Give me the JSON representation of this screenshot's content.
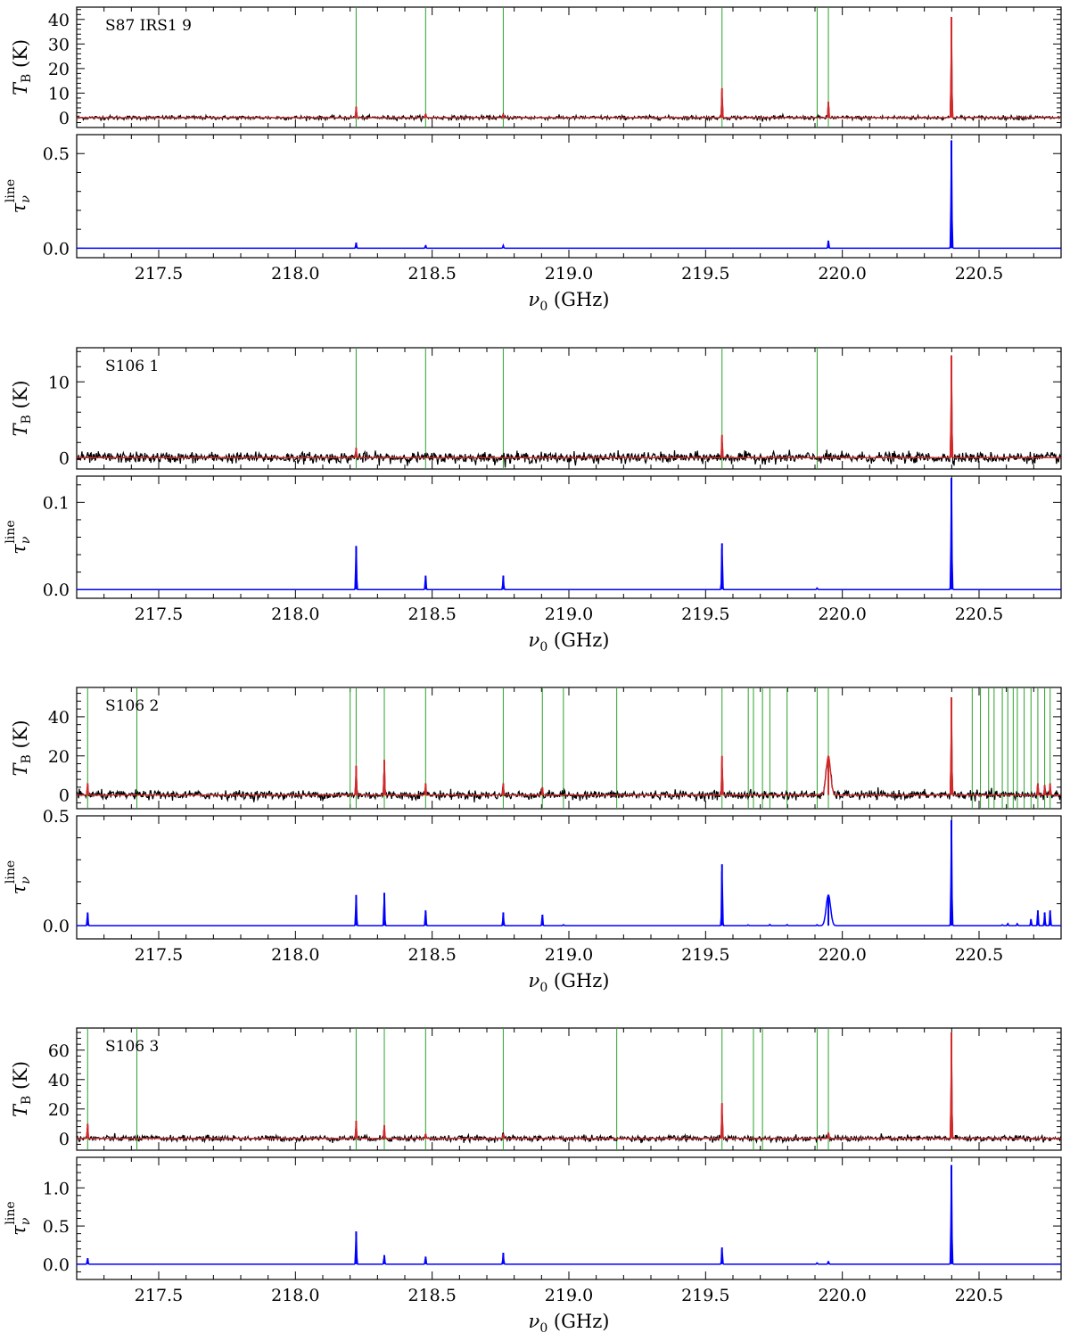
{
  "figure": {
    "xlabel": "ν₀ (GHz)",
    "xlim": [
      217.2,
      220.8
    ],
    "xticks": [
      217.5,
      218.0,
      218.5,
      219.0,
      219.5,
      220.0,
      220.5
    ],
    "xtick_labels": [
      "217.5",
      "218.0",
      "218.5",
      "219.0",
      "219.5",
      "220.0",
      "220.5"
    ],
    "colors": {
      "observed": "#000000",
      "model": "#d62728",
      "tau": "#0000ff",
      "line_markers": "#2ca02c"
    }
  },
  "chart_data": [
    {
      "type": "line",
      "source_label": "S87 IRS1 9",
      "top": {
        "ylabel": "T_B (K)",
        "ylim": [
          -4,
          45
        ],
        "yticks": [
          0,
          10,
          20,
          30,
          40
        ],
        "ytick_labels": [
          "0",
          "10",
          "20",
          "30",
          "40"
        ],
        "line_markers": [
          218.222,
          218.476,
          218.76,
          219.56,
          219.908,
          219.949
        ],
        "peaks": [
          {
            "x": 218.222,
            "y": 4.5
          },
          {
            "x": 218.476,
            "y": 1.5
          },
          {
            "x": 218.76,
            "y": 1.5
          },
          {
            "x": 219.56,
            "y": 12.0
          },
          {
            "x": 219.949,
            "y": 6.5
          },
          {
            "x": 220.399,
            "y": 41.0
          }
        ],
        "noise_rms": 0.4
      },
      "bottom": {
        "ylabel": "τ_ν^line",
        "ylim": [
          -0.05,
          0.6
        ],
        "yticks": [
          0.0,
          0.5
        ],
        "ytick_labels": [
          "0.0",
          "0.5"
        ],
        "peaks": [
          {
            "x": 218.222,
            "y": 0.03
          },
          {
            "x": 218.476,
            "y": 0.015
          },
          {
            "x": 218.76,
            "y": 0.015
          },
          {
            "x": 219.949,
            "y": 0.04
          },
          {
            "x": 220.399,
            "y": 0.57
          }
        ]
      }
    },
    {
      "type": "line",
      "source_label": "S106 1",
      "top": {
        "ylabel": "T_B (K)",
        "ylim": [
          -1.5,
          14.5
        ],
        "yticks": [
          0,
          10
        ],
        "ytick_labels": [
          "0",
          "10"
        ],
        "line_markers": [
          218.222,
          218.476,
          218.76,
          219.56,
          219.908
        ],
        "peaks": [
          {
            "x": 218.222,
            "y": 1.3
          },
          {
            "x": 219.56,
            "y": 3.0
          },
          {
            "x": 220.399,
            "y": 13.5
          }
        ],
        "noise_rms": 0.35
      },
      "bottom": {
        "ylabel": "τ_ν^line",
        "ylim": [
          -0.01,
          0.13
        ],
        "yticks": [
          0.0,
          0.1
        ],
        "ytick_labels": [
          "0.0",
          "0.1"
        ],
        "peaks": [
          {
            "x": 218.222,
            "y": 0.05
          },
          {
            "x": 218.476,
            "y": 0.016
          },
          {
            "x": 218.76,
            "y": 0.016
          },
          {
            "x": 219.56,
            "y": 0.053
          },
          {
            "x": 219.908,
            "y": 0.002
          },
          {
            "x": 220.399,
            "y": 0.128
          }
        ]
      }
    },
    {
      "type": "line",
      "source_label": "S106 2",
      "top": {
        "ylabel": "T_B (K)",
        "ylim": [
          -7,
          55
        ],
        "yticks": [
          0,
          20,
          40
        ],
        "ytick_labels": [
          "0",
          "20",
          "40"
        ],
        "line_markers": [
          217.24,
          217.42,
          218.2,
          218.222,
          218.325,
          218.476,
          218.76,
          218.903,
          218.98,
          219.175,
          219.56,
          219.656,
          219.675,
          219.708,
          219.735,
          219.798,
          219.908,
          219.949,
          220.475,
          220.505,
          220.535,
          220.555,
          220.585,
          220.605,
          220.625,
          220.64,
          220.665,
          220.69,
          220.715,
          220.74,
          220.76
        ],
        "peaks": [
          {
            "x": 217.24,
            "y": 6.0
          },
          {
            "x": 218.222,
            "y": 15.0
          },
          {
            "x": 218.325,
            "y": 18.0
          },
          {
            "x": 218.476,
            "y": 6.0
          },
          {
            "x": 218.76,
            "y": 6.0
          },
          {
            "x": 218.903,
            "y": 4.0
          },
          {
            "x": 219.56,
            "y": 20.0
          },
          {
            "x": 219.949,
            "y": 20.0,
            "w": 0.008
          },
          {
            "x": 220.399,
            "y": 50.0
          },
          {
            "x": 220.715,
            "y": 6.0
          },
          {
            "x": 220.74,
            "y": 5.0
          },
          {
            "x": 220.76,
            "y": 6.0
          }
        ],
        "noise_rms": 1.1
      },
      "bottom": {
        "ylabel": "τ_ν^line",
        "ylim": [
          -0.06,
          0.5
        ],
        "yticks": [
          0.0,
          0.5
        ],
        "ytick_labels": [
          "0.0",
          "0.5"
        ],
        "peaks": [
          {
            "x": 217.24,
            "y": 0.06
          },
          {
            "x": 218.222,
            "y": 0.14
          },
          {
            "x": 218.325,
            "y": 0.15
          },
          {
            "x": 218.476,
            "y": 0.07
          },
          {
            "x": 218.76,
            "y": 0.06
          },
          {
            "x": 218.903,
            "y": 0.05
          },
          {
            "x": 218.98,
            "y": 0.005
          },
          {
            "x": 219.56,
            "y": 0.28
          },
          {
            "x": 219.656,
            "y": 0.004
          },
          {
            "x": 219.735,
            "y": 0.006
          },
          {
            "x": 219.798,
            "y": 0.006
          },
          {
            "x": 219.908,
            "y": 0.005
          },
          {
            "x": 219.949,
            "y": 0.14,
            "w": 0.008
          },
          {
            "x": 220.399,
            "y": 0.48
          },
          {
            "x": 220.585,
            "y": 0.005
          },
          {
            "x": 220.605,
            "y": 0.01
          },
          {
            "x": 220.64,
            "y": 0.01
          },
          {
            "x": 220.69,
            "y": 0.03
          },
          {
            "x": 220.715,
            "y": 0.07
          },
          {
            "x": 220.74,
            "y": 0.06
          },
          {
            "x": 220.76,
            "y": 0.07
          }
        ]
      }
    },
    {
      "type": "line",
      "source_label": "S106 3",
      "top": {
        "ylabel": "T_B (K)",
        "ylim": [
          -8,
          75
        ],
        "yticks": [
          0,
          20,
          40,
          60
        ],
        "ytick_labels": [
          "0",
          "20",
          "40",
          "60"
        ],
        "line_markers": [
          217.24,
          217.42,
          218.222,
          218.325,
          218.476,
          218.76,
          219.175,
          219.56,
          219.675,
          219.708,
          219.908,
          219.949
        ],
        "peaks": [
          {
            "x": 217.24,
            "y": 10.0
          },
          {
            "x": 218.222,
            "y": 12.0
          },
          {
            "x": 218.325,
            "y": 9.0
          },
          {
            "x": 218.476,
            "y": 3.0
          },
          {
            "x": 218.76,
            "y": 3.0
          },
          {
            "x": 219.56,
            "y": 24.0
          },
          {
            "x": 219.949,
            "y": 4.0
          },
          {
            "x": 220.399,
            "y": 72.0
          }
        ],
        "noise_rms": 1.0
      },
      "bottom": {
        "ylabel": "τ_ν^line",
        "ylim": [
          -0.2,
          1.4
        ],
        "yticks": [
          0.0,
          0.5,
          1.0
        ],
        "ytick_labels": [
          "0.0",
          "0.5",
          "1.0"
        ],
        "peaks": [
          {
            "x": 217.24,
            "y": 0.08
          },
          {
            "x": 218.222,
            "y": 0.43
          },
          {
            "x": 218.325,
            "y": 0.12
          },
          {
            "x": 218.476,
            "y": 0.1
          },
          {
            "x": 218.76,
            "y": 0.15
          },
          {
            "x": 219.56,
            "y": 0.22
          },
          {
            "x": 219.908,
            "y": 0.02
          },
          {
            "x": 219.949,
            "y": 0.04
          },
          {
            "x": 220.399,
            "y": 1.3
          }
        ]
      }
    }
  ]
}
